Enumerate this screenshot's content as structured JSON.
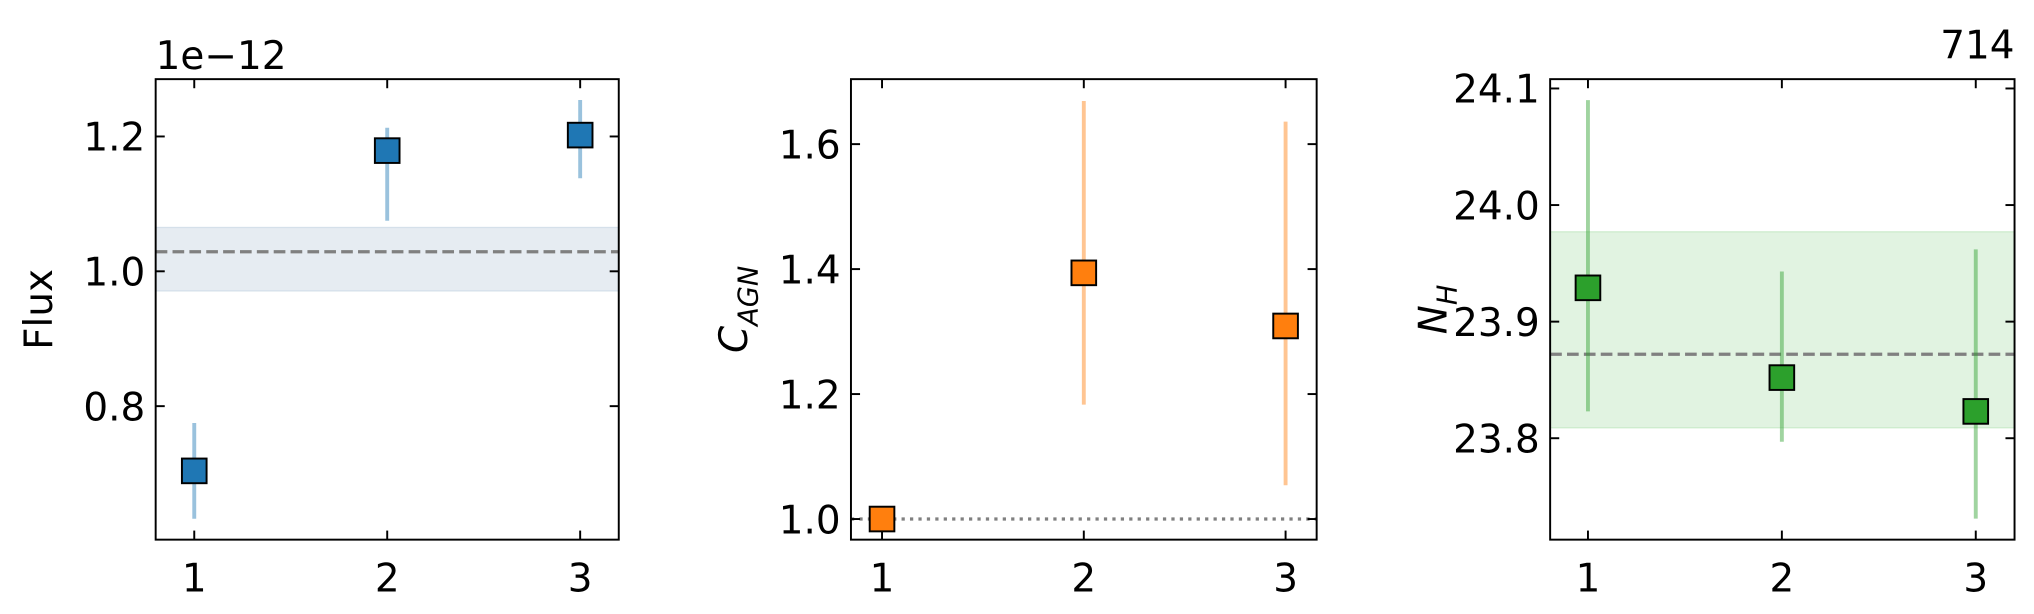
{
  "chart_data": [
    {
      "type": "scatter",
      "ylabel": "Flux",
      "offset_text": "1e−12",
      "x": [
        1,
        2,
        3
      ],
      "xlim": [
        0.8,
        3.2
      ],
      "xticks": [
        1,
        2,
        3
      ],
      "ylim": [
        0.602,
        1.285
      ],
      "yticks": [
        0.8,
        {
          "value": 1.0,
          "label": "1.0"
        },
        1.2
      ],
      "series": [
        {
          "color": "#1f77b4",
          "values": [
            0.704,
            1.179,
            1.202
          ],
          "err_low": [
            0.071,
            0.104,
            0.064
          ],
          "err_high": [
            0.071,
            0.034,
            0.052
          ]
        }
      ],
      "hline": 1.029,
      "hline_style": "dashed",
      "band": [
        0.971,
        1.065
      ],
      "band_color": "#d5e0ea"
    },
    {
      "type": "scatter",
      "ylabel": "C",
      "ylabel_sub": "AGN",
      "x": [
        1,
        2,
        3
      ],
      "xlim": [
        0.846,
        3.154
      ],
      "xticks": [
        1,
        2,
        3
      ],
      "ylim": [
        0.967,
        1.704
      ],
      "yticks": [
        {
          "value": 1.0,
          "label": "1.0"
        },
        1.2,
        1.4,
        1.6
      ],
      "series": [
        {
          "color": "#ff7f0e",
          "values": [
            1.0,
            1.394,
            1.309
          ],
          "err_low": [
            0,
            0.211,
            0.255
          ],
          "err_high": [
            0,
            0.275,
            0.327
          ]
        }
      ],
      "hline": 1.0,
      "hline_style": "dotted"
    },
    {
      "type": "scatter",
      "title": "714",
      "ylabel": "N",
      "ylabel_sub": "H",
      "x": [
        1,
        2,
        3
      ],
      "xlim": [
        0.805,
        3.2
      ],
      "xticks": [
        1,
        2,
        3
      ],
      "ylim": [
        23.713,
        24.108
      ],
      "yticks": [
        23.8,
        23.9,
        {
          "value": 24.0,
          "label": "24.0"
        },
        24.1
      ],
      "series": [
        {
          "color": "#2ca02c",
          "values": [
            23.929,
            23.852,
            23.823
          ],
          "err_low": [
            0.106,
            0.055,
            0.092
          ],
          "err_high": [
            0.161,
            0.091,
            0.139
          ]
        }
      ],
      "hline": 23.872,
      "hline_style": "dashed",
      "band": [
        23.809,
        23.977
      ],
      "band_color": "#cdebcd"
    }
  ]
}
